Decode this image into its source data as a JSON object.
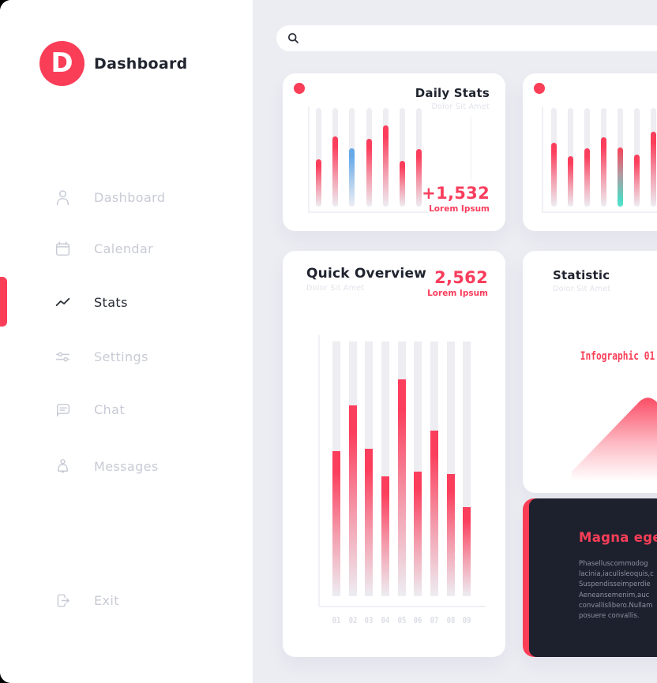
{
  "brand": {
    "logo_letter": "D",
    "name": "Dashboard"
  },
  "sidebar": {
    "items": [
      {
        "label": "Dashboard",
        "icon": "user-icon",
        "active": false
      },
      {
        "label": "Calendar",
        "icon": "calendar-icon",
        "active": false
      },
      {
        "label": "Stats",
        "icon": "stats-zigzag-icon",
        "active": true
      },
      {
        "label": "Settings",
        "icon": "sliders-icon",
        "active": false
      },
      {
        "label": "Chat",
        "icon": "chat-bubble-icon",
        "active": false
      },
      {
        "label": "Messages",
        "icon": "bell-icon",
        "active": false
      }
    ],
    "exit_label": "Exit"
  },
  "search": {
    "value": "",
    "placeholder": ""
  },
  "colors": {
    "accent": "#fa3e58",
    "blue": "#66a9e8",
    "teal": "#4fd9c4",
    "bg": "#ecedf3",
    "dark_card": "#1d212e"
  },
  "cards": {
    "daily": {
      "title": "Daily Stats",
      "subtitle": "Dolor Sit Amet",
      "stat_value": "+1,532",
      "stat_label": "Lorem Ipsum",
      "chart_data": {
        "type": "bar",
        "title": "Daily Stats",
        "values": [
          48,
          71,
          59,
          69,
          82,
          46,
          58
        ],
        "ylabel": "fill percent of track",
        "ylim": [
          0,
          100
        ],
        "bar_colors": {
          "2": "blue"
        },
        "grid": false,
        "legend": "none"
      }
    },
    "mini": {
      "chart_data": {
        "type": "bar",
        "title": "",
        "values": [
          65,
          51,
          59,
          70,
          60,
          53,
          76
        ],
        "ylabel": "fill percent of track",
        "ylim": [
          0,
          100
        ],
        "bar_colors": {
          "4": "teal"
        },
        "grid": false,
        "legend": "none"
      }
    },
    "overview": {
      "title": "Quick Overview",
      "subtitle": "Dolor Sit Amet",
      "stat_value": "2,562",
      "stat_label": "Lorem Ipsum",
      "chart_data": {
        "type": "bar",
        "title": "Quick Overview",
        "categories": [
          "01",
          "02",
          "03",
          "04",
          "05",
          "06",
          "07",
          "08",
          "09"
        ],
        "values": [
          57,
          75,
          58,
          47,
          85,
          49,
          65,
          48,
          35
        ],
        "ylabel": "fill percent of track",
        "ylim": [
          0,
          100
        ],
        "bar_colors": {},
        "grid": false,
        "legend": "none"
      }
    },
    "statistic": {
      "title": "Statistic",
      "subtitle": "Dolor Sit Amet",
      "infographic_label": "Infographic 01"
    },
    "dark": {
      "title": "Magna eget",
      "body_lines": [
        "Phaselluscommodog",
        "lacinia,iaculisleoquis,c",
        "Suspendisseimperdie",
        "Aeneansemenim,auc",
        "convallislibero.Nullam",
        "posuere convallis."
      ]
    }
  }
}
